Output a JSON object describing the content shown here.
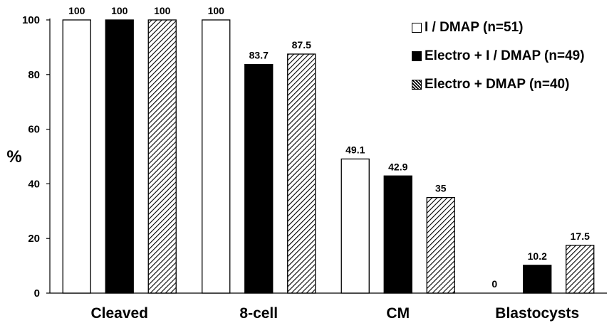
{
  "chart_data": {
    "type": "bar",
    "title": "",
    "xlabel": "",
    "ylabel": "%",
    "ylim": [
      0,
      100
    ],
    "yticks": [
      "0",
      "20",
      "40",
      "60",
      "80",
      "100"
    ],
    "grid": false,
    "legend_position": "top-right",
    "categories": [
      "Cleaved",
      "8-cell",
      "CM",
      "Blastocysts"
    ],
    "series": [
      {
        "name": "I / DMAP (n=51)",
        "fill": "white",
        "color": "#ffffff",
        "values": [
          100,
          100,
          49.1,
          0
        ],
        "labels": [
          "100",
          "100",
          "49.1",
          "0"
        ]
      },
      {
        "name": "Electro + I / DMAP (n=49)",
        "fill": "black",
        "color": "#000000",
        "values": [
          100,
          83.7,
          42.9,
          10.2
        ],
        "labels": [
          "100",
          "83.7",
          "42.9",
          "10.2"
        ]
      },
      {
        "name": "Electro + DMAP (n=40)",
        "fill": "hatched",
        "color": "#000000",
        "values": [
          100,
          87.5,
          35,
          17.5
        ],
        "labels": [
          "100",
          "87.5",
          "35",
          "17.5"
        ]
      }
    ]
  }
}
